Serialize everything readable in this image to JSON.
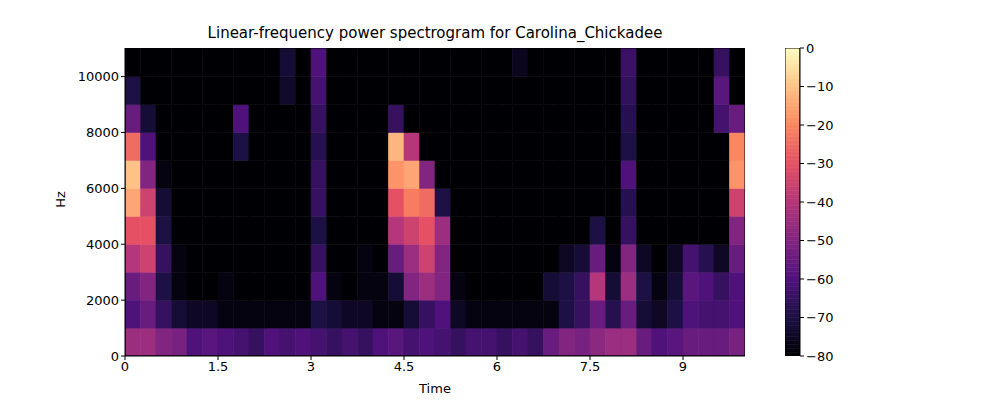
{
  "chart_data": {
    "type": "heatmap",
    "title": "Linear-frequency power spectrogram for Carolina_Chickadee",
    "x_label": "Time",
    "y_label": "Hz",
    "xlim": [
      0,
      10
    ],
    "ylim": [
      0,
      11025
    ],
    "xticks": [
      0,
      1.5,
      3,
      4.5,
      6,
      7.5,
      9
    ],
    "yticks": [
      0,
      2000,
      4000,
      6000,
      8000,
      10000
    ],
    "x_bins": [
      0,
      0.25,
      0.5,
      0.75,
      1,
      1.25,
      1.5,
      1.75,
      2,
      2.25,
      2.5,
      2.75,
      3,
      3.25,
      3.5,
      3.75,
      4,
      4.25,
      4.5,
      4.75,
      5,
      5.25,
      5.5,
      5.75,
      6,
      6.25,
      6.5,
      6.75,
      7,
      7.25,
      7.5,
      7.75,
      8,
      8.25,
      8.5,
      8.75,
      9,
      9.25,
      9.5,
      9.75,
      10
    ],
    "y_bins": [
      0,
      1000,
      2000,
      3000,
      4000,
      5000,
      6000,
      7000,
      8000,
      9000,
      10000,
      11025
    ],
    "z": [
      [
        -45,
        -45,
        -50,
        -52,
        -60,
        -58,
        -60,
        -62,
        -65,
        -60,
        -62,
        -60,
        -62,
        -65,
        -62,
        -65,
        -60,
        -58,
        -62,
        -60,
        -62,
        -65,
        -62,
        -62,
        -65,
        -62,
        -65,
        -55,
        -50,
        -52,
        -48,
        -45,
        -45,
        -55,
        -60,
        -58,
        -55,
        -55,
        -55,
        -52
      ],
      [
        -60,
        -55,
        -65,
        -72,
        -75,
        -75,
        -78,
        -78,
        -78,
        -78,
        -78,
        -78,
        -70,
        -72,
        -75,
        -75,
        -78,
        -78,
        -72,
        -65,
        -60,
        -75,
        -78,
        -78,
        -78,
        -78,
        -78,
        -78,
        -70,
        -65,
        -55,
        -68,
        -55,
        -72,
        -75,
        -70,
        -60,
        -62,
        -62,
        -60
      ],
      [
        -55,
        -50,
        -70,
        -78,
        -80,
        -80,
        -78,
        -80,
        -80,
        -80,
        -80,
        -80,
        -60,
        -78,
        -80,
        -78,
        -78,
        -72,
        -50,
        -45,
        -50,
        -78,
        -80,
        -80,
        -80,
        -80,
        -80,
        -72,
        -70,
        -65,
        -40,
        -72,
        -45,
        -70,
        -78,
        -72,
        -58,
        -60,
        -65,
        -60
      ],
      [
        -40,
        -35,
        -65,
        -78,
        -80,
        -80,
        -80,
        -80,
        -80,
        -80,
        -80,
        -80,
        -65,
        -80,
        -80,
        -78,
        -80,
        -55,
        -45,
        -35,
        -50,
        -80,
        -80,
        -80,
        -80,
        -80,
        -80,
        -80,
        -75,
        -72,
        -55,
        -78,
        -50,
        -75,
        -80,
        -75,
        -62,
        -68,
        -75,
        -55
      ],
      [
        -30,
        -30,
        -70,
        -80,
        -80,
        -80,
        -80,
        -80,
        -80,
        -80,
        -80,
        -80,
        -70,
        -80,
        -80,
        -80,
        -80,
        -40,
        -35,
        -30,
        -45,
        -80,
        -80,
        -80,
        -80,
        -80,
        -80,
        -80,
        -80,
        -80,
        -70,
        -80,
        -65,
        -80,
        -80,
        -80,
        -80,
        -80,
        -80,
        -50
      ],
      [
        -15,
        -35,
        -72,
        -80,
        -80,
        -80,
        -80,
        -80,
        -80,
        -80,
        -80,
        -80,
        -65,
        -80,
        -80,
        -80,
        -80,
        -30,
        -22,
        -25,
        -70,
        -80,
        -80,
        -80,
        -80,
        -80,
        -80,
        -80,
        -80,
        -80,
        -80,
        -80,
        -68,
        -80,
        -80,
        -80,
        -80,
        -80,
        -80,
        -35
      ],
      [
        -10,
        -50,
        -78,
        -80,
        -80,
        -80,
        -80,
        -80,
        -80,
        -80,
        -80,
        -80,
        -65,
        -80,
        -80,
        -80,
        -80,
        -18,
        -15,
        -50,
        -80,
        -80,
        -80,
        -80,
        -80,
        -80,
        -80,
        -80,
        -80,
        -80,
        -80,
        -80,
        -60,
        -80,
        -80,
        -80,
        -80,
        -80,
        -80,
        -18
      ],
      [
        -25,
        -60,
        -80,
        -80,
        -80,
        -80,
        -80,
        -70,
        -80,
        -80,
        -80,
        -80,
        -68,
        -80,
        -80,
        -80,
        -80,
        -12,
        -40,
        -80,
        -80,
        -80,
        -80,
        -80,
        -80,
        -80,
        -80,
        -80,
        -80,
        -80,
        -80,
        -80,
        -70,
        -80,
        -80,
        -80,
        -80,
        -80,
        -80,
        -20
      ],
      [
        -55,
        -72,
        -80,
        -80,
        -80,
        -80,
        -80,
        -60,
        -80,
        -80,
        -80,
        -80,
        -65,
        -80,
        -80,
        -80,
        -80,
        -65,
        -80,
        -80,
        -80,
        -80,
        -80,
        -80,
        -80,
        -80,
        -80,
        -80,
        -80,
        -80,
        -80,
        -80,
        -68,
        -80,
        -80,
        -80,
        -80,
        -80,
        -62,
        -55
      ],
      [
        -70,
        -80,
        -80,
        -80,
        -80,
        -80,
        -80,
        -80,
        -80,
        -80,
        -74,
        -80,
        -62,
        -80,
        -80,
        -80,
        -80,
        -80,
        -80,
        -80,
        -80,
        -80,
        -80,
        -80,
        -80,
        -80,
        -80,
        -80,
        -80,
        -80,
        -80,
        -80,
        -66,
        -80,
        -80,
        -80,
        -80,
        -80,
        -58,
        -80
      ],
      [
        -80,
        -80,
        -80,
        -80,
        -80,
        -80,
        -80,
        -80,
        -80,
        -80,
        -72,
        -80,
        -60,
        -80,
        -80,
        -80,
        -80,
        -80,
        -80,
        -80,
        -80,
        -80,
        -80,
        -80,
        -80,
        -76,
        -80,
        -80,
        -80,
        -80,
        -80,
        -80,
        -64,
        -80,
        -80,
        -80,
        -80,
        -80,
        -65,
        -80
      ]
    ],
    "zlim": [
      -80,
      0
    ],
    "zticks": [
      {
        "value": 0,
        "label": "0"
      },
      {
        "value": -10,
        "label": "−10"
      },
      {
        "value": -20,
        "label": "−20"
      },
      {
        "value": -30,
        "label": "−30"
      },
      {
        "value": -40,
        "label": "−40"
      },
      {
        "value": -50,
        "label": "−50"
      },
      {
        "value": -60,
        "label": "−60"
      },
      {
        "value": -70,
        "label": "−70"
      },
      {
        "value": -80,
        "label": "−80"
      }
    ]
  }
}
